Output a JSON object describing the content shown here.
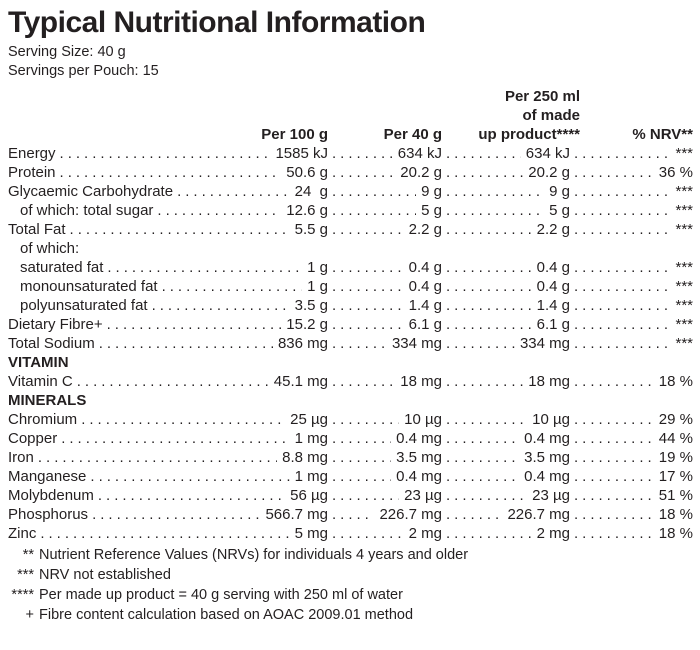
{
  "page": {
    "title": "Typical Nutritional Information",
    "serving_size": "Serving Size: 40 g",
    "servings_per_pouch": "Servings per Pouch: 15"
  },
  "table": {
    "header": {
      "col3_line1": "Per 250 ml",
      "col3_line2": "of made",
      "col1": "Per 100 g",
      "col2": "Per 40 g",
      "col3_line3": "up product****",
      "col4": "% NRV**"
    },
    "rows": [
      {
        "type": "data",
        "indent": false,
        "label": "Energy",
        "values": [
          "1585 kJ",
          "634 kJ",
          "634 kJ",
          "***"
        ]
      },
      {
        "type": "data",
        "indent": false,
        "label": "Protein",
        "values": [
          "50.6 g",
          "20.2 g",
          "20.2 g",
          "36 %"
        ]
      },
      {
        "type": "data",
        "indent": false,
        "label": "Glycaemic Carbohydrate",
        "values": [
          "24  g",
          "9 g",
          "9 g",
          "***"
        ]
      },
      {
        "type": "data",
        "indent": true,
        "label": "of which: total sugar",
        "values": [
          "12.6 g",
          "5 g",
          "5 g",
          "***"
        ]
      },
      {
        "type": "data",
        "indent": false,
        "label": "Total Fat",
        "values": [
          "5.5 g",
          "2.2 g",
          "2.2 g",
          "***"
        ]
      },
      {
        "type": "plain",
        "indent": true,
        "label": "of which:"
      },
      {
        "type": "data",
        "indent": true,
        "label": "saturated fat",
        "values": [
          "1 g",
          "0.4 g",
          "0.4 g",
          "***"
        ]
      },
      {
        "type": "data",
        "indent": true,
        "label": "monounsaturated fat",
        "values": [
          "1 g",
          "0.4 g",
          "0.4 g",
          "***"
        ]
      },
      {
        "type": "data",
        "indent": true,
        "label": "polyunsaturated fat",
        "values": [
          "3.5 g",
          "1.4 g",
          "1.4 g",
          "***"
        ]
      },
      {
        "type": "data",
        "indent": false,
        "label": "Dietary Fibre+",
        "values": [
          "15.2 g",
          "6.1 g",
          "6.1 g",
          "***"
        ]
      },
      {
        "type": "data",
        "indent": false,
        "label": "Total Sodium",
        "values": [
          "836 mg",
          "334 mg",
          "334 mg",
          "***"
        ]
      },
      {
        "type": "section",
        "indent": false,
        "label": "VITAMIN"
      },
      {
        "type": "data",
        "indent": false,
        "label": "Vitamin C",
        "values": [
          "45.1 mg",
          "18 mg",
          "18 mg",
          "18 %"
        ]
      },
      {
        "type": "section",
        "indent": false,
        "label": "MINERALS"
      },
      {
        "type": "data",
        "indent": false,
        "label": "Chromium",
        "values": [
          "25 µg",
          "10 µg",
          "10 µg",
          "29 %"
        ]
      },
      {
        "type": "data",
        "indent": false,
        "label": "Copper",
        "values": [
          "1 mg",
          "0.4 mg",
          "0.4 mg",
          "44 %"
        ]
      },
      {
        "type": "data",
        "indent": false,
        "label": "Iron",
        "values": [
          "8.8 mg",
          "3.5 mg",
          "3.5 mg",
          "19 %"
        ]
      },
      {
        "type": "data",
        "indent": false,
        "label": "Manganese",
        "values": [
          "1 mg",
          "0.4 mg",
          "0.4 mg",
          "17 %"
        ]
      },
      {
        "type": "data",
        "indent": false,
        "label": "Molybdenum",
        "values": [
          "56 µg",
          "23 µg",
          "23 µg",
          "51 %"
        ]
      },
      {
        "type": "data",
        "indent": false,
        "label": "Phosphorus",
        "values": [
          "566.7 mg",
          "226.7 mg",
          "226.7 mg",
          "18 %"
        ]
      },
      {
        "type": "data",
        "indent": false,
        "label": "Zinc",
        "values": [
          "5 mg",
          "2 mg",
          "2 mg",
          "18 %"
        ]
      }
    ]
  },
  "footnotes": [
    {
      "marker": "**",
      "text": "Nutrient Reference Values (NRVs) for individuals 4 years and older"
    },
    {
      "marker": "***",
      "text": "NRV not established"
    },
    {
      "marker": "****",
      "text": "Per made up product = 40 g serving with 250 ml of water"
    },
    {
      "marker": "+",
      "text": "Fibre content calculation based on AOAC 2009.01 method"
    }
  ],
  "colors": {
    "text": "#231f20",
    "background": "#ffffff"
  }
}
